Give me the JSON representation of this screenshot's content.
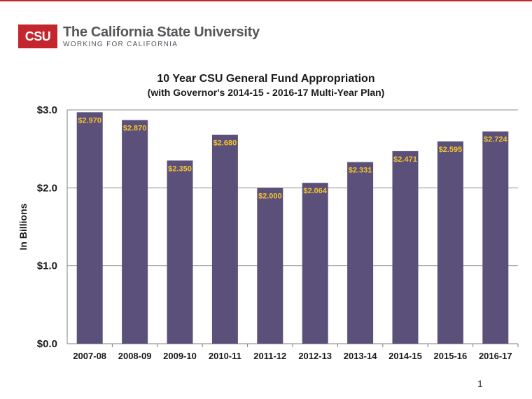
{
  "logo": {
    "mark": "CSU",
    "name": "The California State University",
    "tagline": "WORKING FOR CALIFORNIA"
  },
  "page_number": "1",
  "colors": {
    "bar": "#5b507a",
    "data_label": "#f3c22d",
    "brand_red": "#c4262e",
    "grid": "#8c8c8c"
  },
  "chart_data": {
    "type": "bar",
    "title": "10 Year CSU General Fund Appropriation",
    "subtitle": "(with Governor's 2014-15 - 2016-17 Multi-Year Plan)",
    "ylabel": "In Billions",
    "xlabel": "",
    "ylim": [
      0,
      3
    ],
    "yticks": [
      "$0.0",
      "$1.0",
      "$2.0",
      "$3.0"
    ],
    "ytick_values": [
      0,
      1,
      2,
      3
    ],
    "grid": true,
    "categories": [
      "2007-08",
      "2008-09",
      "2009-10",
      "2010-11",
      "2011-12",
      "2012-13",
      "2013-14",
      "2014-15",
      "2015-16",
      "2016-17"
    ],
    "values": [
      2.97,
      2.87,
      2.35,
      2.68,
      2.0,
      2.064,
      2.331,
      2.471,
      2.595,
      2.724
    ],
    "data_labels": [
      "$2.970",
      "$2.870",
      "$2.350",
      "$2.680",
      "$2.000",
      "$2.064",
      "$2.331",
      "$2.471",
      "$2.595",
      "$2.724"
    ]
  }
}
